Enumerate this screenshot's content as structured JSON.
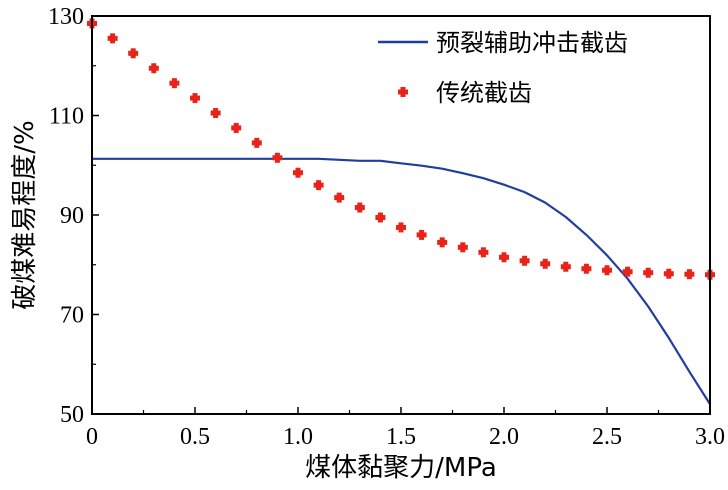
{
  "chart_data": {
    "type": "line",
    "title": "",
    "xlabel": "煤体黏聚力/MPa",
    "ylabel": "破煤难易程度/%",
    "xlim": [
      0,
      3.0
    ],
    "ylim": [
      50,
      130
    ],
    "x_ticks": [
      0,
      0.5,
      1.0,
      1.5,
      2.0,
      2.5,
      3.0
    ],
    "x_tick_labels": [
      "0",
      "0.5",
      "1.0",
      "1.5",
      "2.0",
      "2.5",
      "3.0"
    ],
    "y_ticks": [
      50,
      70,
      90,
      110,
      130
    ],
    "y_tick_labels": [
      "50",
      "70",
      "90",
      "110",
      "130"
    ],
    "grid": false,
    "legend_position": "top-right",
    "colors": {
      "line": "#1f3f9f",
      "marker": "#e8231a"
    },
    "series": [
      {
        "name": "预裂辅助冲击截齿",
        "style": "line",
        "x": [
          0,
          0.2,
          0.4,
          0.6,
          0.8,
          1.0,
          1.1,
          1.2,
          1.3,
          1.4,
          1.5,
          1.6,
          1.7,
          1.8,
          1.9,
          2.0,
          2.1,
          2.2,
          2.3,
          2.4,
          2.5,
          2.6,
          2.7,
          2.8,
          2.9,
          3.0
        ],
        "values": [
          101.3,
          101.3,
          101.3,
          101.3,
          101.3,
          101.3,
          101.3,
          101.1,
          100.9,
          100.9,
          100.4,
          99.9,
          99.3,
          98.4,
          97.4,
          96.1,
          94.6,
          92.5,
          89.6,
          86.0,
          81.9,
          77.2,
          71.6,
          65.3,
          58.5,
          52.0
        ]
      },
      {
        "name": "传统截齿",
        "style": "marker",
        "x": [
          0,
          0.1,
          0.2,
          0.3,
          0.4,
          0.5,
          0.6,
          0.7,
          0.8,
          0.9,
          1.0,
          1.1,
          1.2,
          1.3,
          1.4,
          1.5,
          1.6,
          1.7,
          1.8,
          1.9,
          2.0,
          2.1,
          2.2,
          2.3,
          2.4,
          2.5,
          2.6,
          2.7,
          2.8,
          2.9,
          3.0
        ],
        "values": [
          128.5,
          125.5,
          122.5,
          119.5,
          116.5,
          113.5,
          110.5,
          107.5,
          104.5,
          101.5,
          98.5,
          96.0,
          93.5,
          91.5,
          89.5,
          87.5,
          86.0,
          84.5,
          83.5,
          82.5,
          81.5,
          80.8,
          80.2,
          79.6,
          79.2,
          78.9,
          78.6,
          78.4,
          78.2,
          78.1,
          78.0
        ]
      }
    ]
  }
}
